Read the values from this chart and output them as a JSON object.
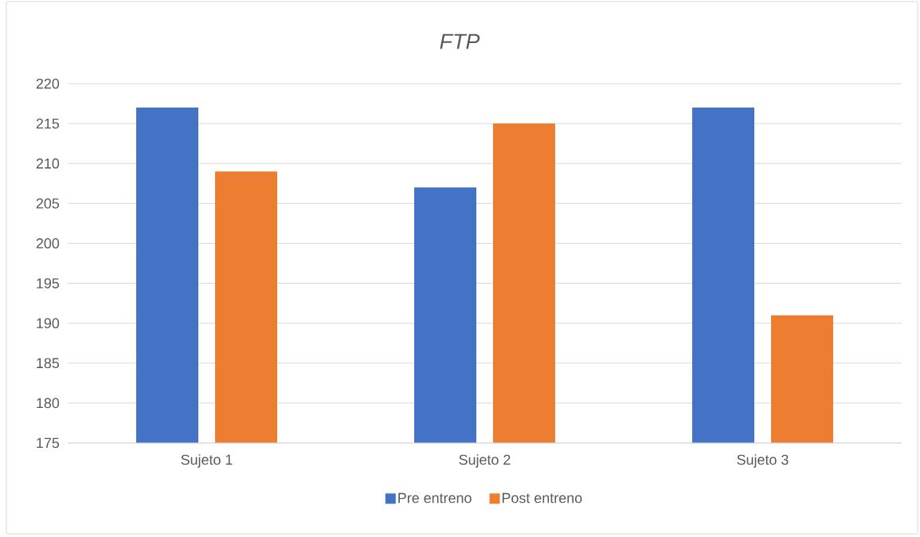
{
  "chart_data": {
    "type": "bar",
    "title": "FTP",
    "categories": [
      "Sujeto 1",
      "Sujeto 2",
      "Sujeto 3"
    ],
    "series": [
      {
        "name": "Pre entreno",
        "color": "#4472c4",
        "values": [
          217,
          207,
          217
        ]
      },
      {
        "name": "Post entreno",
        "color": "#ed7d31",
        "values": [
          209,
          215,
          191
        ]
      }
    ],
    "ylim": [
      175,
      220
    ],
    "yticks": [
      175,
      180,
      185,
      190,
      195,
      200,
      205,
      210,
      215,
      220
    ],
    "grid": "y",
    "legend": "bottom"
  }
}
